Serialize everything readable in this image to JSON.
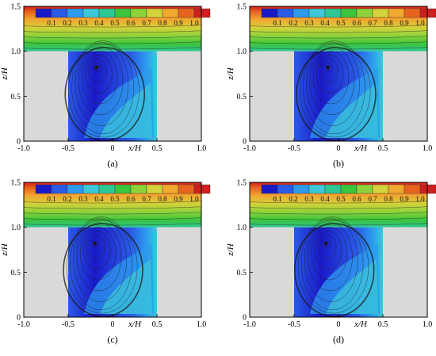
{
  "figure": {
    "panels": [
      {
        "label": "(a)",
        "vortex_center": {
          "x": -0.18,
          "z": 0.82
        }
      },
      {
        "label": "(b)",
        "vortex_center": {
          "x": -0.12,
          "z": 0.82
        }
      },
      {
        "label": "(c)",
        "vortex_center": {
          "x": -0.2,
          "z": 0.82
        }
      },
      {
        "label": "(d)",
        "vortex_center": {
          "x": -0.14,
          "z": 0.82
        }
      }
    ],
    "axes": {
      "xlabel": "x/H",
      "ylabel": "z/H",
      "xticks": [
        "-1.0",
        "-0.5",
        "0",
        "0.5",
        "1.0"
      ],
      "xtick_values": [
        -1.0,
        -0.5,
        0,
        0.5,
        1.0
      ],
      "yticks": [
        "0",
        "0.5",
        "1.0",
        "1.5"
      ],
      "ytick_values": [
        0,
        0.5,
        1.0,
        1.5
      ],
      "xlim": [
        -1.0,
        1.0
      ],
      "ylim": [
        0,
        1.5
      ]
    },
    "geometry_data": {
      "canyon_x": [
        -0.5,
        0.5
      ],
      "canyon_depth": 1.0
    },
    "colorbar": {
      "labels": [
        "0.1",
        "0.2",
        "0.3",
        "0.4",
        "0.5",
        "0.6",
        "0.7",
        "0.8",
        "0.9",
        "1.0"
      ],
      "colors": [
        "#1a1ac8",
        "#2a5ae6",
        "#2e9aee",
        "#3cc8d8",
        "#2ec896",
        "#3cc43c",
        "#8cd23a",
        "#d2d23a",
        "#f0a830",
        "#e8641e",
        "#d21e1e"
      ]
    },
    "colors": {
      "building": "#d9d9d9",
      "streamline": "#1a1a1a"
    }
  }
}
